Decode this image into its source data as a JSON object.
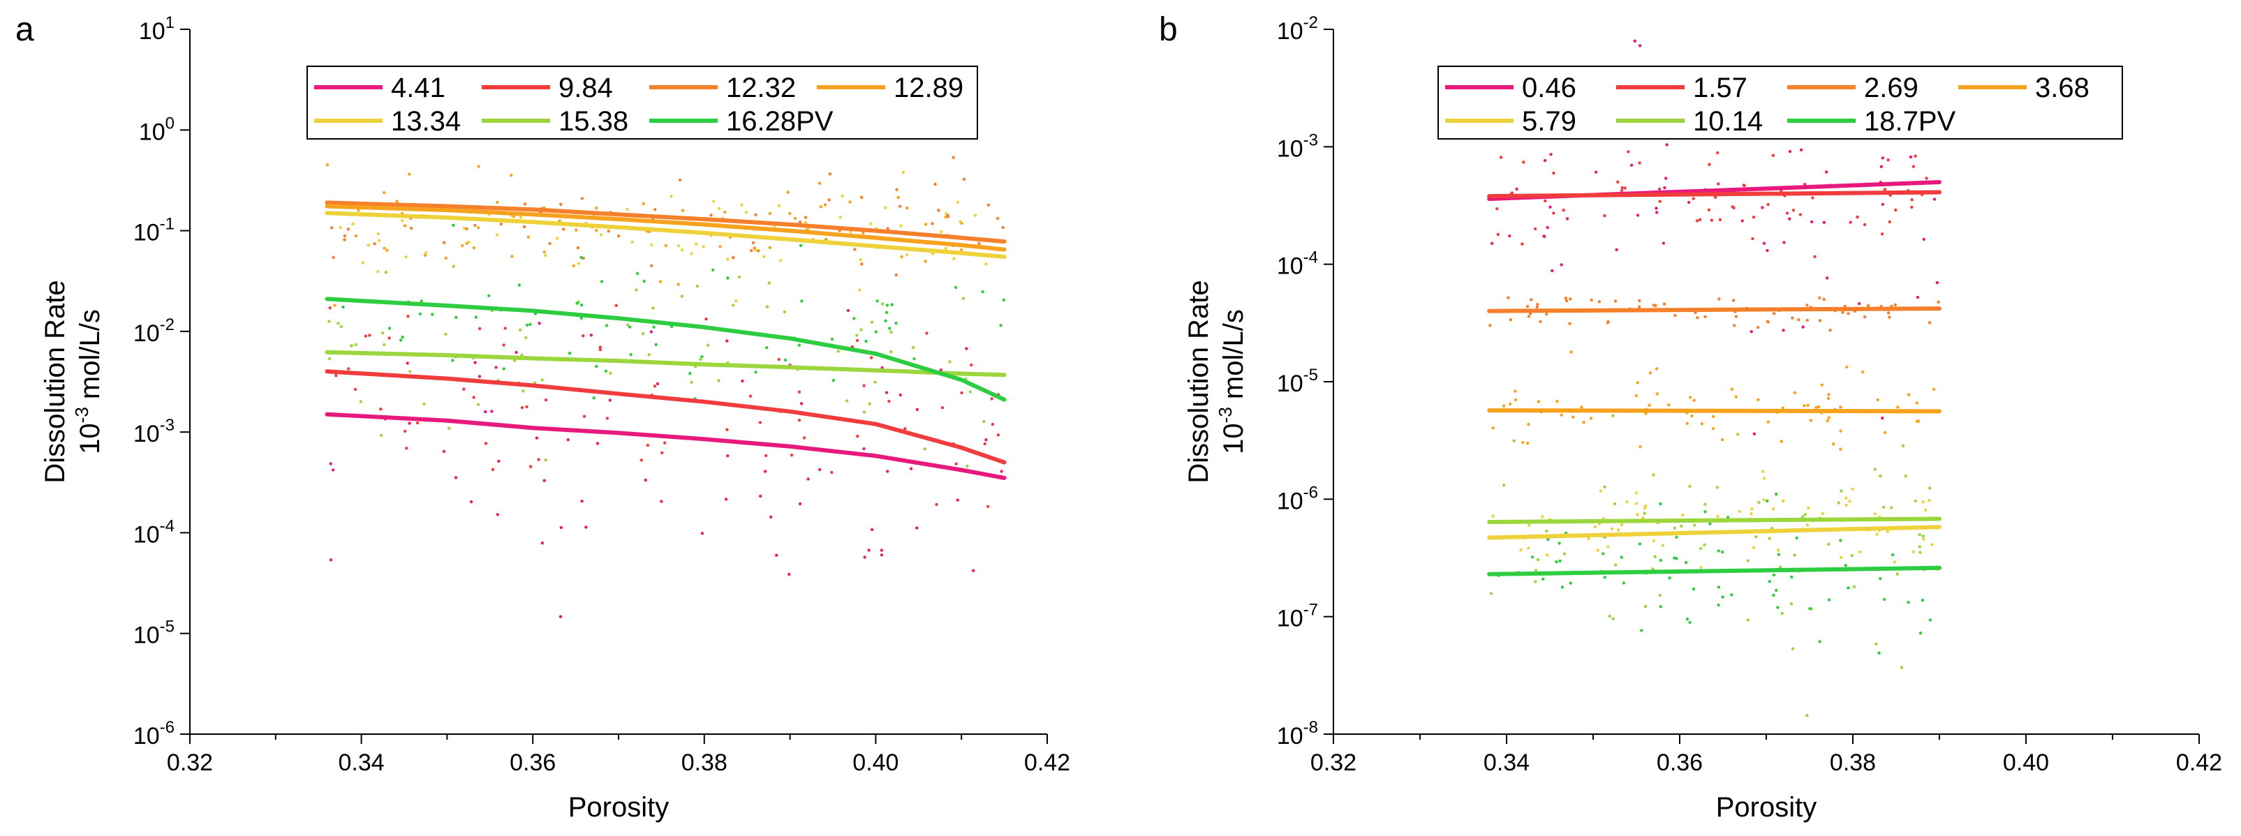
{
  "panel_labels": [
    "a",
    "b"
  ],
  "chart_data": [
    {
      "panel": "a",
      "type": "scatter",
      "xlabel": "Porosity",
      "ylabel_line1": "Dissolution Rate",
      "ylabel_line2_prefix": "10",
      "ylabel_line2_exp": "-3",
      "ylabel_line2_suffix": " mol/L/s",
      "yscale": "log",
      "xlim": [
        0.32,
        0.42
      ],
      "ylim": [
        1e-06,
        10
      ],
      "xticks": [
        "0.32",
        "0.34",
        "0.36",
        "0.38",
        "0.40",
        "0.42"
      ],
      "xtick_values": [
        0.32,
        0.34,
        0.36,
        0.38,
        0.4,
        0.42
      ],
      "yticks": [
        {
          "base": "10",
          "exp": "1",
          "value": 10
        },
        {
          "base": "10",
          "exp": "0",
          "value": 1
        },
        {
          "base": "10",
          "exp": "-1",
          "value": 0.1
        },
        {
          "base": "10",
          "exp": "-2",
          "value": 0.01
        },
        {
          "base": "10",
          "exp": "-3",
          "value": 0.001
        },
        {
          "base": "10",
          "exp": "-4",
          "value": 0.0001
        },
        {
          "base": "10",
          "exp": "-5",
          "value": 1e-05
        },
        {
          "base": "10",
          "exp": "-6",
          "value": 1e-06
        }
      ],
      "legend": {
        "placement": "top-center",
        "rows": [
          [
            "4.41",
            "9.84",
            "12.32",
            "12.89"
          ],
          [
            "13.34",
            "15.38",
            "16.28PV"
          ]
        ]
      },
      "scatter_x_range": [
        0.336,
        0.415
      ],
      "series": [
        {
          "name": "4.41",
          "color": "#e8197d",
          "fit": {
            "x": [
              0.336,
              0.35,
              0.36,
              0.37,
              0.38,
              0.39,
              0.4,
              0.41,
              0.415
            ],
            "y": [
              0.0015,
              0.0013,
              0.0011,
              0.00098,
              0.00085,
              0.00072,
              0.00058,
              0.00042,
              0.00035
            ]
          },
          "scatter_center": 0.0008,
          "scatter_spread": 1.6
        },
        {
          "name": "9.84",
          "color": "#f03c3c",
          "fit": {
            "x": [
              0.336,
              0.35,
              0.36,
              0.37,
              0.38,
              0.39,
              0.4,
              0.41,
              0.415
            ],
            "y": [
              0.004,
              0.0034,
              0.0029,
              0.0024,
              0.002,
              0.0016,
              0.0012,
              0.0007,
              0.0005
            ]
          },
          "scatter_center": 0.0019,
          "scatter_spread": 1.0
        },
        {
          "name": "12.32",
          "color": "#f57f2a",
          "fit": {
            "x": [
              0.336,
              0.35,
              0.36,
              0.37,
              0.38,
              0.39,
              0.4,
              0.41,
              0.415
            ],
            "y": [
              0.19,
              0.175,
              0.162,
              0.145,
              0.13,
              0.115,
              0.1,
              0.085,
              0.078
            ]
          },
          "scatter_center": 0.12,
          "scatter_spread": 0.5
        },
        {
          "name": "12.89",
          "color": "#f6a21e",
          "fit": {
            "x": [
              0.336,
              0.35,
              0.36,
              0.37,
              0.38,
              0.39,
              0.4,
              0.41,
              0.415
            ],
            "y": [
              0.175,
              0.16,
              0.145,
              0.13,
              0.115,
              0.1,
              0.085,
              0.072,
              0.065
            ]
          },
          "scatter_center": 0.11,
          "scatter_spread": 0.5
        },
        {
          "name": "13.34",
          "color": "#efd23a",
          "fit": {
            "x": [
              0.336,
              0.35,
              0.36,
              0.37,
              0.38,
              0.39,
              0.4,
              0.41,
              0.415
            ],
            "y": [
              0.15,
              0.135,
              0.122,
              0.108,
              0.095,
              0.082,
              0.07,
              0.06,
              0.055
            ]
          },
          "scatter_center": 0.09,
          "scatter_spread": 0.5
        },
        {
          "name": "15.38",
          "color": "#9ad63c",
          "fit": {
            "x": [
              0.336,
              0.35,
              0.36,
              0.37,
              0.38,
              0.39,
              0.4,
              0.41,
              0.415
            ],
            "y": [
              0.0062,
              0.0058,
              0.0054,
              0.0051,
              0.0047,
              0.0044,
              0.0041,
              0.0038,
              0.0037
            ]
          },
          "scatter_center": 0.005,
          "scatter_spread": 0.9
        },
        {
          "name": "16.28PV",
          "color": "#2ecc40",
          "fit": {
            "x": [
              0.336,
              0.35,
              0.36,
              0.37,
              0.38,
              0.39,
              0.4,
              0.41,
              0.415
            ],
            "y": [
              0.021,
              0.018,
              0.016,
              0.0135,
              0.011,
              0.0085,
              0.006,
              0.0033,
              0.0021
            ]
          },
          "scatter_center": 0.012,
          "scatter_spread": 0.9
        }
      ]
    },
    {
      "panel": "b",
      "type": "scatter",
      "xlabel": "Porosity",
      "ylabel_line1": "Dissolution Rate",
      "ylabel_line2_prefix": "10",
      "ylabel_line2_exp": "-3",
      "ylabel_line2_suffix": " mol/L/s",
      "yscale": "log",
      "xlim": [
        0.32,
        0.42
      ],
      "ylim": [
        1e-08,
        0.01
      ],
      "xticks": [
        "0.32",
        "0.34",
        "0.36",
        "0.38",
        "0.40",
        "0.42"
      ],
      "xtick_values": [
        0.32,
        0.34,
        0.36,
        0.38,
        0.4,
        0.42
      ],
      "yticks": [
        {
          "base": "10",
          "exp": "-2",
          "value": 0.01
        },
        {
          "base": "10",
          "exp": "-3",
          "value": 0.001
        },
        {
          "base": "10",
          "exp": "-4",
          "value": 0.0001
        },
        {
          "base": "10",
          "exp": "-5",
          "value": 1e-05
        },
        {
          "base": "10",
          "exp": "-6",
          "value": 1e-06
        },
        {
          "base": "10",
          "exp": "-7",
          "value": 1e-07
        },
        {
          "base": "10",
          "exp": "-8",
          "value": 1e-08
        }
      ],
      "legend": {
        "placement": "top-center",
        "rows": [
          [
            "0.46",
            "1.57",
            "2.69",
            "3.68"
          ],
          [
            "5.79",
            "10.14",
            "18.7PV"
          ]
        ]
      },
      "scatter_x_range": [
        0.338,
        0.39
      ],
      "series": [
        {
          "name": "0.46",
          "color": "#e8197d",
          "fit": {
            "x": [
              0.338,
              0.39
            ],
            "y": [
              0.00036,
              0.0005
            ]
          },
          "scatter_center": 0.0003,
          "scatter_spread": 1.5
        },
        {
          "name": "1.57",
          "color": "#f03c3c",
          "fit": {
            "x": [
              0.338,
              0.39
            ],
            "y": [
              0.00038,
              0.00041
            ]
          },
          "scatter_center": 0.0004,
          "scatter_spread": 0.5
        },
        {
          "name": "2.69",
          "color": "#f57f2a",
          "fit": {
            "x": [
              0.338,
              0.39
            ],
            "y": [
              4e-05,
              4.2e-05
            ]
          },
          "scatter_center": 4e-05,
          "scatter_spread": 0.15
        },
        {
          "name": "3.68",
          "color": "#f6a21e",
          "fit": {
            "x": [
              0.338,
              0.39
            ],
            "y": [
              5.7e-06,
              5.6e-06
            ]
          },
          "scatter_center": 5.7e-06,
          "scatter_spread": 0.35
        },
        {
          "name": "5.79",
          "color": "#efd23a",
          "fit": {
            "x": [
              0.338,
              0.39
            ],
            "y": [
              4.7e-07,
              5.8e-07
            ]
          },
          "scatter_center": 6e-07,
          "scatter_spread": 0.4
        },
        {
          "name": "10.14",
          "color": "#9ad63c",
          "fit": {
            "x": [
              0.338,
              0.39
            ],
            "y": [
              6.4e-07,
              6.8e-07
            ]
          },
          "scatter_center": 5e-07,
          "scatter_spread": 1.2
        },
        {
          "name": "18.7PV",
          "color": "#2ecc40",
          "fit": {
            "x": [
              0.338,
              0.39
            ],
            "y": [
              2.3e-07,
              2.6e-07
            ]
          },
          "scatter_center": 2.5e-07,
          "scatter_spread": 0.6
        }
      ]
    }
  ]
}
